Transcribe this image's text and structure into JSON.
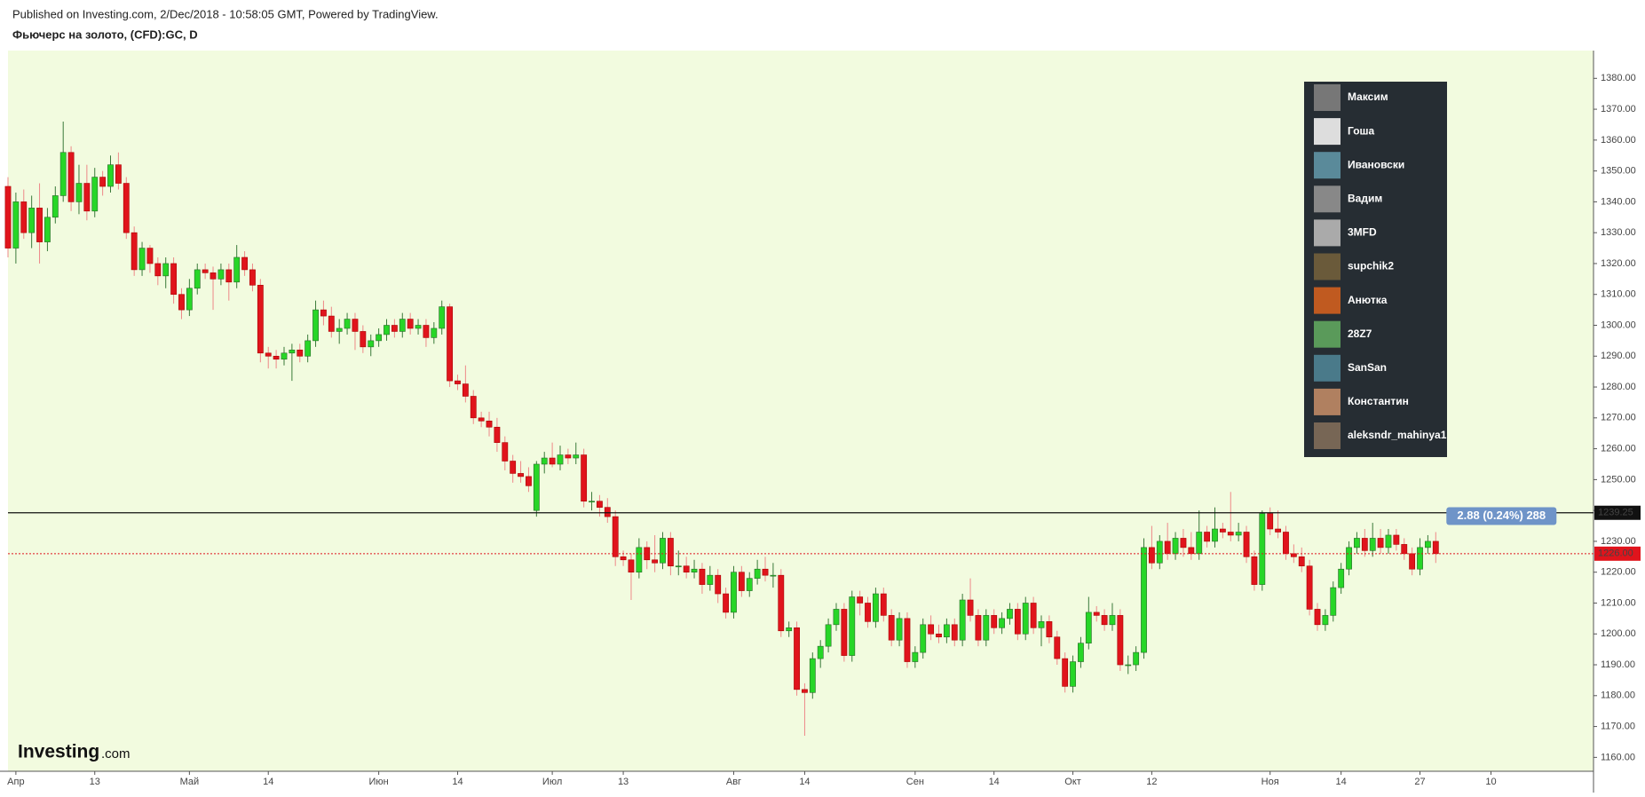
{
  "header": {
    "published": "Published on Investing.com, 2/Dec/2018 - 10:58:05 GMT, Powered by TradingView.",
    "symbol": "Фьючерс на золото, (CFD):GC, D"
  },
  "chart_data": {
    "type": "candlestick",
    "up_color": "#27d627",
    "down_color": "#e0141c",
    "background": "#f2fbdf",
    "ohlc": [
      [
        1345,
        1348,
        1322,
        1325
      ],
      [
        1325,
        1343,
        1320,
        1340
      ],
      [
        1340,
        1344,
        1328,
        1330
      ],
      [
        1330,
        1342,
        1325,
        1338
      ],
      [
        1338,
        1346,
        1320,
        1327
      ],
      [
        1327,
        1338,
        1324,
        1335
      ],
      [
        1335,
        1345,
        1333,
        1342
      ],
      [
        1342,
        1366,
        1340,
        1356
      ],
      [
        1356,
        1358,
        1337,
        1340
      ],
      [
        1340,
        1352,
        1336,
        1346
      ],
      [
        1346,
        1352,
        1334,
        1337
      ],
      [
        1337,
        1351,
        1335,
        1348
      ],
      [
        1348,
        1350,
        1342,
        1345
      ],
      [
        1345,
        1355,
        1343,
        1352
      ],
      [
        1352,
        1356,
        1344,
        1346
      ],
      [
        1346,
        1348,
        1328,
        1330
      ],
      [
        1330,
        1332,
        1316,
        1318
      ],
      [
        1318,
        1327,
        1316,
        1325
      ],
      [
        1325,
        1326,
        1317,
        1320
      ],
      [
        1320,
        1322,
        1313,
        1316
      ],
      [
        1316,
        1322,
        1312,
        1320
      ],
      [
        1320,
        1322,
        1307,
        1310
      ],
      [
        1310,
        1312,
        1302,
        1305
      ],
      [
        1305,
        1315,
        1303,
        1312
      ],
      [
        1312,
        1320,
        1310,
        1318
      ],
      [
        1318,
        1320,
        1315,
        1317
      ],
      [
        1317,
        1319,
        1305,
        1315
      ],
      [
        1315,
        1320,
        1313,
        1318
      ],
      [
        1318,
        1320,
        1308,
        1314
      ],
      [
        1314,
        1326,
        1312,
        1322
      ],
      [
        1322,
        1324,
        1316,
        1318
      ],
      [
        1318,
        1320,
        1311,
        1313
      ],
      [
        1313,
        1315,
        1288,
        1291
      ],
      [
        1291,
        1293,
        1286,
        1290
      ],
      [
        1290,
        1292,
        1286,
        1289
      ],
      [
        1289,
        1293,
        1287,
        1291
      ],
      [
        1291,
        1294,
        1282,
        1292
      ],
      [
        1292,
        1294,
        1288,
        1290
      ],
      [
        1290,
        1297,
        1288,
        1295
      ],
      [
        1295,
        1308,
        1293,
        1305
      ],
      [
        1305,
        1308,
        1300,
        1303
      ],
      [
        1303,
        1306,
        1296,
        1298
      ],
      [
        1298,
        1302,
        1294,
        1299
      ],
      [
        1299,
        1304,
        1297,
        1302
      ],
      [
        1302,
        1304,
        1292,
        1298
      ],
      [
        1298,
        1300,
        1291,
        1293
      ],
      [
        1293,
        1297,
        1290,
        1295
      ],
      [
        1295,
        1299,
        1293,
        1297
      ],
      [
        1297,
        1302,
        1295,
        1300
      ],
      [
        1300,
        1302,
        1296,
        1298
      ],
      [
        1298,
        1304,
        1296,
        1302
      ],
      [
        1302,
        1304,
        1297,
        1299
      ],
      [
        1299,
        1302,
        1297,
        1300
      ],
      [
        1300,
        1302,
        1293,
        1296
      ],
      [
        1296,
        1301,
        1294,
        1299
      ],
      [
        1299,
        1308,
        1297,
        1306
      ],
      [
        1306,
        1307,
        1280,
        1282
      ],
      [
        1282,
        1284,
        1279,
        1281
      ],
      [
        1281,
        1287,
        1275,
        1277
      ],
      [
        1277,
        1279,
        1268,
        1270
      ],
      [
        1270,
        1272,
        1267,
        1269
      ],
      [
        1269,
        1272,
        1264,
        1267
      ],
      [
        1267,
        1270,
        1259,
        1262
      ],
      [
        1262,
        1264,
        1253,
        1256
      ],
      [
        1256,
        1258,
        1249,
        1252
      ],
      [
        1252,
        1256,
        1249,
        1251
      ],
      [
        1251,
        1254,
        1246,
        1248
      ],
      [
        1240,
        1256,
        1238,
        1255
      ],
      [
        1255,
        1259,
        1252,
        1257
      ],
      [
        1257,
        1262,
        1254,
        1255
      ],
      [
        1255,
        1261,
        1253,
        1258
      ],
      [
        1258,
        1260,
        1255,
        1257
      ],
      [
        1257,
        1262,
        1255,
        1258
      ],
      [
        1258,
        1260,
        1241,
        1243
      ],
      [
        1243,
        1246,
        1240,
        1243
      ],
      [
        1243,
        1245,
        1238,
        1241
      ],
      [
        1241,
        1244,
        1236,
        1238
      ],
      [
        1238,
        1240,
        1222,
        1225
      ],
      [
        1225,
        1227,
        1222,
        1224
      ],
      [
        1224,
        1226,
        1211,
        1220
      ],
      [
        1220,
        1231,
        1218,
        1228
      ],
      [
        1228,
        1230,
        1221,
        1224
      ],
      [
        1224,
        1232,
        1220,
        1223
      ],
      [
        1223,
        1233,
        1221,
        1231
      ],
      [
        1231,
        1233,
        1219,
        1222
      ],
      [
        1222,
        1227,
        1219,
        1222
      ],
      [
        1222,
        1225,
        1218,
        1220
      ],
      [
        1220,
        1224,
        1218,
        1221
      ],
      [
        1221,
        1223,
        1213,
        1216
      ],
      [
        1216,
        1222,
        1214,
        1219
      ],
      [
        1219,
        1221,
        1210,
        1213
      ],
      [
        1213,
        1215,
        1205,
        1207
      ],
      [
        1207,
        1222,
        1205,
        1220
      ],
      [
        1220,
        1222,
        1212,
        1214
      ],
      [
        1214,
        1220,
        1212,
        1218
      ],
      [
        1218,
        1224,
        1216,
        1221
      ],
      [
        1221,
        1225,
        1217,
        1219
      ],
      [
        1219,
        1223,
        1215,
        1219
      ],
      [
        1219,
        1221,
        1199,
        1201
      ],
      [
        1201,
        1204,
        1199,
        1202
      ],
      [
        1202,
        1204,
        1180,
        1182
      ],
      [
        1182,
        1184,
        1167,
        1181
      ],
      [
        1181,
        1194,
        1179,
        1192
      ],
      [
        1192,
        1198,
        1189,
        1196
      ],
      [
        1196,
        1205,
        1194,
        1203
      ],
      [
        1203,
        1210,
        1201,
        1208
      ],
      [
        1208,
        1210,
        1191,
        1193
      ],
      [
        1193,
        1214,
        1191,
        1212
      ],
      [
        1212,
        1214,
        1206,
        1210
      ],
      [
        1210,
        1212,
        1202,
        1204
      ],
      [
        1204,
        1215,
        1202,
        1213
      ],
      [
        1213,
        1215,
        1204,
        1206
      ],
      [
        1206,
        1208,
        1196,
        1198
      ],
      [
        1198,
        1207,
        1196,
        1205
      ],
      [
        1205,
        1207,
        1189,
        1191
      ],
      [
        1191,
        1196,
        1189,
        1194
      ],
      [
        1194,
        1205,
        1192,
        1203
      ],
      [
        1203,
        1206,
        1198,
        1200
      ],
      [
        1200,
        1203,
        1197,
        1199
      ],
      [
        1199,
        1205,
        1197,
        1203
      ],
      [
        1203,
        1205,
        1196,
        1198
      ],
      [
        1198,
        1213,
        1196,
        1211
      ],
      [
        1211,
        1218,
        1204,
        1206
      ],
      [
        1206,
        1208,
        1196,
        1198
      ],
      [
        1198,
        1208,
        1196,
        1206
      ],
      [
        1206,
        1208,
        1200,
        1202
      ],
      [
        1202,
        1207,
        1200,
        1205
      ],
      [
        1205,
        1210,
        1203,
        1208
      ],
      [
        1208,
        1210,
        1198,
        1200
      ],
      [
        1200,
        1212,
        1198,
        1210
      ],
      [
        1210,
        1212,
        1200,
        1202
      ],
      [
        1202,
        1206,
        1196,
        1204
      ],
      [
        1204,
        1206,
        1197,
        1199
      ],
      [
        1199,
        1201,
        1190,
        1192
      ],
      [
        1192,
        1194,
        1181,
        1183
      ],
      [
        1183,
        1193,
        1181,
        1191
      ],
      [
        1191,
        1199,
        1189,
        1197
      ],
      [
        1197,
        1212,
        1195,
        1207
      ],
      [
        1207,
        1209,
        1204,
        1206
      ],
      [
        1206,
        1208,
        1201,
        1203
      ],
      [
        1203,
        1210,
        1201,
        1206
      ],
      [
        1206,
        1208,
        1188,
        1190
      ],
      [
        1190,
        1193,
        1187,
        1190
      ],
      [
        1190,
        1196,
        1188,
        1194
      ],
      [
        1194,
        1231,
        1192,
        1228
      ],
      [
        1228,
        1235,
        1221,
        1223
      ],
      [
        1223,
        1232,
        1221,
        1230
      ],
      [
        1230,
        1236,
        1224,
        1226
      ],
      [
        1226,
        1233,
        1224,
        1231
      ],
      [
        1231,
        1234,
        1225,
        1228
      ],
      [
        1228,
        1233,
        1224,
        1226
      ],
      [
        1226,
        1240,
        1224,
        1233
      ],
      [
        1233,
        1235,
        1228,
        1230
      ],
      [
        1230,
        1241,
        1228,
        1234
      ],
      [
        1234,
        1236,
        1231,
        1233
      ],
      [
        1233,
        1246,
        1230,
        1232
      ],
      [
        1232,
        1236,
        1230,
        1233
      ],
      [
        1233,
        1235,
        1223,
        1225
      ],
      [
        1225,
        1227,
        1214,
        1216
      ],
      [
        1216,
        1240,
        1214,
        1239
      ],
      [
        1239,
        1241,
        1232,
        1234
      ],
      [
        1234,
        1240,
        1231,
        1233
      ],
      [
        1233,
        1235,
        1224,
        1226
      ],
      [
        1226,
        1229,
        1223,
        1225
      ],
      [
        1225,
        1228,
        1220,
        1222
      ],
      [
        1222,
        1224,
        1206,
        1208
      ],
      [
        1208,
        1210,
        1201,
        1203
      ],
      [
        1203,
        1208,
        1201,
        1206
      ],
      [
        1206,
        1217,
        1204,
        1215
      ],
      [
        1215,
        1223,
        1213,
        1221
      ],
      [
        1221,
        1230,
        1219,
        1228
      ],
      [
        1228,
        1233,
        1226,
        1231
      ],
      [
        1231,
        1234,
        1225,
        1227
      ],
      [
        1227,
        1236,
        1225,
        1231
      ],
      [
        1231,
        1234,
        1226,
        1228
      ],
      [
        1228,
        1234,
        1226,
        1232
      ],
      [
        1232,
        1234,
        1227,
        1229
      ],
      [
        1229,
        1231,
        1224,
        1226
      ],
      [
        1226,
        1228,
        1219,
        1221
      ],
      [
        1221,
        1231,
        1219,
        1228
      ],
      [
        1228,
        1232,
        1226,
        1230
      ],
      [
        1230,
        1233,
        1223,
        1226
      ]
    ],
    "xlim": [
      0,
      201
    ],
    "xticks": [
      {
        "value": 1,
        "label": "Апр"
      },
      {
        "value": 11,
        "label": "13"
      },
      {
        "value": 23,
        "label": "Май"
      },
      {
        "value": 33,
        "label": "14"
      },
      {
        "value": 47,
        "label": "Июн"
      },
      {
        "value": 57,
        "label": "14"
      },
      {
        "value": 69,
        "label": "Июл"
      },
      {
        "value": 78,
        "label": "13"
      },
      {
        "value": 92,
        "label": "Авг"
      },
      {
        "value": 101,
        "label": "14"
      },
      {
        "value": 115,
        "label": "Сен"
      },
      {
        "value": 125,
        "label": "14"
      },
      {
        "value": 135,
        "label": "Окт"
      },
      {
        "value": 145,
        "label": "12"
      },
      {
        "value": 160,
        "label": "Ноя"
      },
      {
        "value": 169,
        "label": "14"
      },
      {
        "value": 179,
        "label": "27"
      },
      {
        "value": 188,
        "label": "10"
      }
    ],
    "ylim": [
      1155.5,
      1389
    ],
    "yticks": [
      {
        "value": 1160,
        "label": "1160.00"
      },
      {
        "value": 1170,
        "label": "1170.00"
      },
      {
        "value": 1180,
        "label": "1180.00"
      },
      {
        "value": 1190,
        "label": "1190.00"
      },
      {
        "value": 1200,
        "label": "1200.00"
      },
      {
        "value": 1210,
        "label": "1210.00"
      },
      {
        "value": 1220,
        "label": "1220.00"
      },
      {
        "value": 1230,
        "label": "1230.00"
      },
      {
        "value": 1240,
        "label": "1240.00"
      },
      {
        "value": 1250,
        "label": "1250.00"
      },
      {
        "value": 1260,
        "label": "1260.00"
      },
      {
        "value": 1270,
        "label": "1270.00"
      },
      {
        "value": 1280,
        "label": "1280.00"
      },
      {
        "value": 1290,
        "label": "1290.00"
      },
      {
        "value": 1300,
        "label": "1300.00"
      },
      {
        "value": 1310,
        "label": "1310.00"
      },
      {
        "value": 1320,
        "label": "1320.00"
      },
      {
        "value": 1330,
        "label": "1330.00"
      },
      {
        "value": 1340,
        "label": "1340.00"
      },
      {
        "value": 1350,
        "label": "1350.00"
      },
      {
        "value": 1360,
        "label": "1360.00"
      },
      {
        "value": 1370,
        "label": "1370.00"
      },
      {
        "value": 1380,
        "label": "1380.00"
      }
    ],
    "price_lines": [
      {
        "value": 1239.25,
        "label": "1239.25",
        "color": "#111111"
      },
      {
        "value": 1226,
        "label": "1226.00",
        "color": "#e0141c"
      }
    ],
    "tooltip": "2.88 (0.24%) 288",
    "watermark": {
      "brand": "Investing",
      "suffix": ".com"
    }
  },
  "users": [
    "Максим",
    "Гоша",
    "Ивановски",
    "Вадим",
    "3MFD",
    "supchik2",
    "Анютка",
    "28Z7",
    "SanSan",
    "Константин",
    "aleksndr_mahinya1"
  ]
}
